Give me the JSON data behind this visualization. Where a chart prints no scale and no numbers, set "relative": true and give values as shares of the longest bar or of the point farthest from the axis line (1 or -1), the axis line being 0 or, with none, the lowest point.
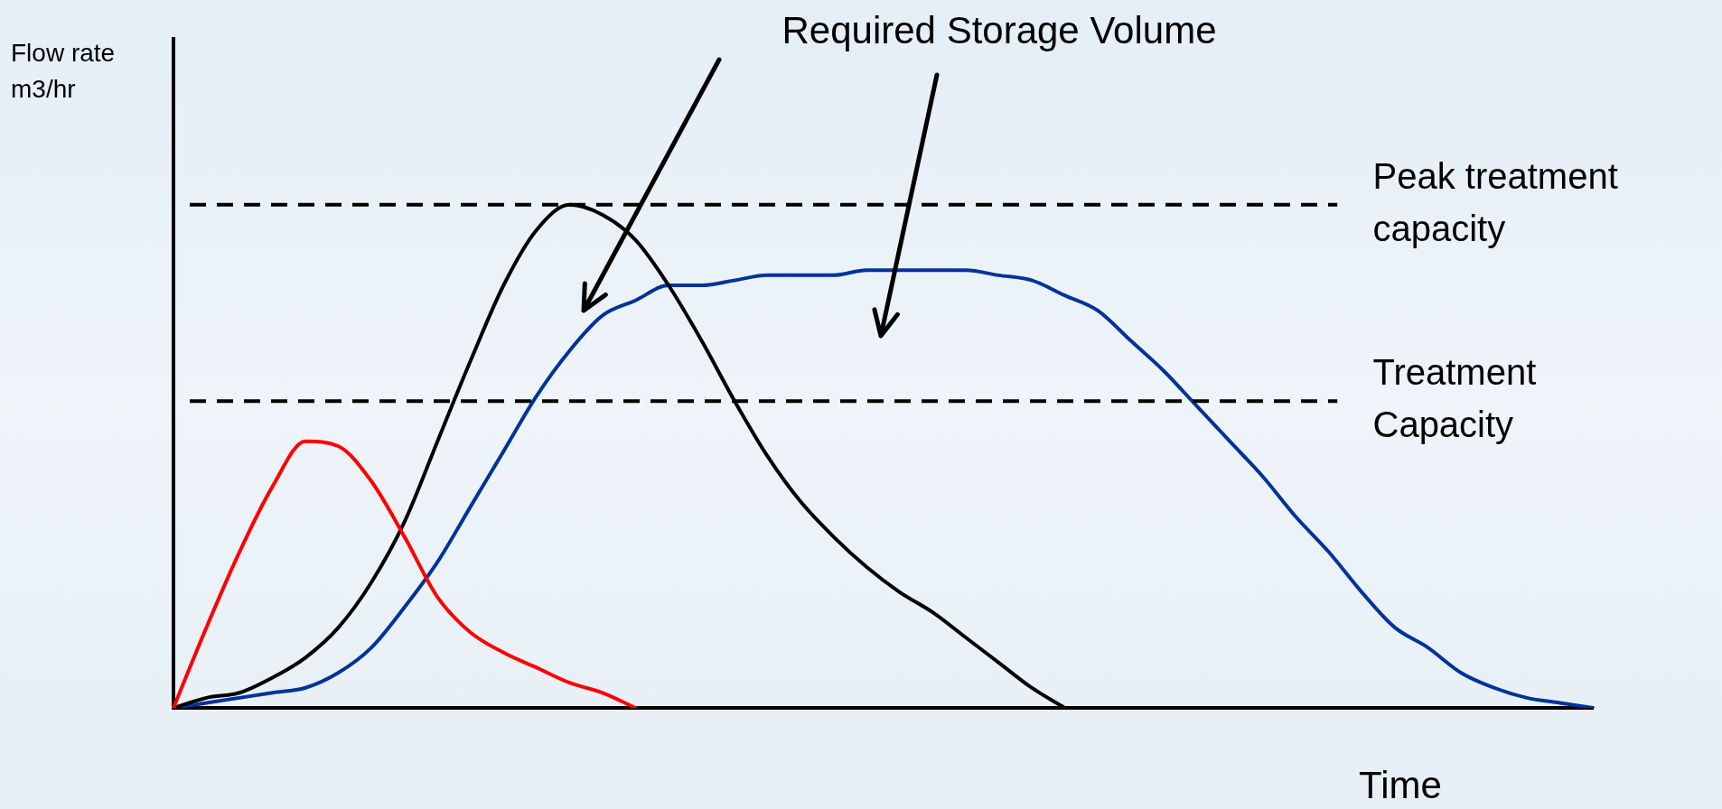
{
  "chart_data": {
    "type": "line",
    "relative": true,
    "marker": "none",
    "xlabel": "Time",
    "ylabel": "Flow rate m3/hr",
    "annotations": [
      "Required Storage Volume"
    ],
    "categories": [
      null,
      null,
      null,
      null,
      null,
      null,
      null,
      null,
      null,
      null,
      null,
      null,
      null,
      null,
      null,
      null,
      null,
      null,
      null,
      null,
      null,
      null,
      null,
      null,
      null,
      null,
      null,
      null,
      null,
      null,
      null,
      null,
      null,
      null,
      null,
      null,
      null,
      null,
      null,
      null,
      null,
      null,
      null,
      null
    ],
    "series": [
      {
        "color": "#ff0000",
        "values": [
          0,
          0.16,
          0.31,
          0.44,
          0.53,
          0.52,
          0.45,
          0.34,
          0.22,
          0.15,
          0.11,
          0.08,
          0.05,
          0.03,
          0,
          null,
          null,
          null,
          null,
          null,
          null,
          null,
          null,
          null,
          null,
          null,
          null,
          null,
          null,
          null,
          null,
          null,
          null,
          null,
          null,
          null,
          null,
          null,
          null,
          null,
          null,
          null,
          null,
          null
        ]
      },
      {
        "color": "#000000",
        "values": [
          0,
          0.02,
          0.03,
          0.06,
          0.1,
          0.16,
          0.25,
          0.37,
          0.53,
          0.69,
          0.84,
          0.95,
          1,
          0.98,
          0.93,
          0.84,
          0.73,
          0.61,
          0.5,
          0.41,
          0.34,
          0.28,
          0.23,
          0.19,
          0.14,
          0.09,
          0.04,
          0,
          null,
          null,
          null,
          null,
          null,
          null,
          null,
          null,
          null,
          null,
          null,
          null,
          null,
          null,
          null,
          null
        ]
      },
      {
        "color": "#003399",
        "values": [
          0,
          0.01,
          0.02,
          0.03,
          0.04,
          0.07,
          0.12,
          0.2,
          0.29,
          0.4,
          0.51,
          0.62,
          0.71,
          0.78,
          0.81,
          0.84,
          0.84,
          0.85,
          0.86,
          0.86,
          0.86,
          0.87,
          0.87,
          0.87,
          0.87,
          0.86,
          0.85,
          0.82,
          0.79,
          0.73,
          0.67,
          0.6,
          0.53,
          0.46,
          0.38,
          0.31,
          0.23,
          0.16,
          0.12,
          0.07,
          0.04,
          0.02,
          0.01,
          0
        ]
      }
    ],
    "ref_lines": [
      {
        "axis": "y",
        "value": 1,
        "label": "Peak treatment capacity",
        "line_style": "dashed"
      },
      {
        "axis": "y",
        "value": 0.61,
        "label": "Treatment Capacity",
        "line_style": "dashed"
      }
    ]
  }
}
